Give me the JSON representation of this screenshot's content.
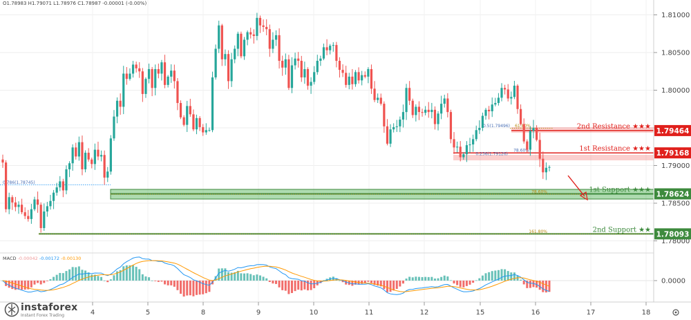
{
  "header": {
    "ohlc": "O1.78983 H1.79071 L1.78976 C1.78987 -0.00001 (-0.00%)"
  },
  "logo": {
    "name": "instaforex",
    "tagline": "Instant Forex Trading",
    "icon": "instaforex-logo-icon"
  },
  "macd": {
    "label": "MACD",
    "v1": "-0.00042",
    "v2": "-0.00172",
    "v3": "-0.00130",
    "zero_label": "0.0000"
  },
  "settings_icon": "gear-icon",
  "colors": {
    "bull": "#26a69a",
    "bear": "#ef5350",
    "resistance": "#e0201c",
    "support": "#3d8a3d",
    "support_zone": "rgba(76,175,80,0.45)",
    "resistance_zone": "rgba(239,83,80,0.28)",
    "macd_line": "#2196f3",
    "signal_line": "#ff9800"
  },
  "chart_data": {
    "type": "candlestick",
    "y_axis": {
      "min": 1.7785,
      "max": 1.8122,
      "ticks": [
        1.78,
        1.785,
        1.79,
        1.795,
        1.8,
        1.805,
        1.81
      ],
      "tick_labels": [
        "1.78000",
        "1.78500",
        "1.79000",
        "1.79500",
        "1.80000",
        "1.80500",
        "1.81000"
      ]
    },
    "x_axis": {
      "ticks": [
        "4",
        "5",
        "8",
        "9",
        "10",
        "11",
        "12",
        "15",
        "16",
        "17",
        "18"
      ]
    },
    "levels": [
      {
        "name": "2nd Resistance",
        "stars": "★★★",
        "price": 1.79464,
        "label": "1.79464",
        "role": "resistance"
      },
      {
        "name": "1st Resistance",
        "stars": "★★★",
        "price": 1.79168,
        "label": "1.79168",
        "role": "resistance"
      },
      {
        "name": "1st Support",
        "stars": "★★★",
        "price": 1.78624,
        "label": "1.78624",
        "role": "support"
      },
      {
        "name": "2nd Support",
        "stars": "★★",
        "price": 1.78093,
        "label": "1.78093",
        "role": "support"
      }
    ],
    "fib_labels": [
      {
        "text": "0.786(1.78745)",
        "price": 1.78745
      },
      {
        "text": "78.60%",
        "price": 1.7862
      },
      {
        "text": "161.80%",
        "price": 1.78093
      },
      {
        "text": "0.5(1.79496)",
        "price": 1.79496
      },
      {
        "text": "61.80%",
        "price": 1.79496
      },
      {
        "text": "0.236(1.79126)",
        "price": 1.79126
      },
      {
        "text": "78.60%",
        "price": 1.79168
      }
    ],
    "candles_close": [
      1.7904,
      1.7842,
      1.7858,
      1.7851,
      1.7845,
      1.7848,
      1.7838,
      1.7833,
      1.7829,
      1.7842,
      1.7855,
      1.7848,
      1.7817,
      1.7839,
      1.7846,
      1.7853,
      1.7864,
      1.7871,
      1.7879,
      1.7867,
      1.7895,
      1.7903,
      1.7924,
      1.7912,
      1.7931,
      1.7895,
      1.7917,
      1.7908,
      1.7902,
      1.7921,
      1.7912,
      1.7914,
      1.7884,
      1.7892,
      1.7936,
      1.7965,
      1.7986,
      1.7978,
      1.8022,
      1.8015,
      1.8022,
      1.8034,
      1.8029,
      1.8025,
      1.7995,
      1.8015,
      1.8028,
      1.8003,
      1.8028,
      1.8022,
      1.8037,
      1.8007,
      1.8018,
      1.8026,
      1.8012,
      1.7983,
      1.7964,
      1.7954,
      1.7979,
      1.7968,
      1.7948,
      1.7963,
      1.7951,
      1.7944,
      1.7947,
      1.7947,
      1.8017,
      1.8055,
      1.8086,
      1.8041,
      1.8048,
      1.8012,
      1.8041,
      1.8055,
      1.8075,
      1.8045,
      1.8067,
      1.8077,
      1.8074,
      1.8072,
      1.8096,
      1.8086,
      1.8084,
      1.8081,
      1.8055,
      1.8067,
      1.8073,
      1.8039,
      1.803,
      1.8041,
      1.8003,
      1.8033,
      1.8042,
      1.8039,
      1.8017,
      1.8028,
      1.8006,
      1.8011,
      1.8024,
      1.8039,
      1.8042,
      1.8057,
      1.8053,
      1.8059,
      1.806,
      1.8039,
      1.8027,
      1.8023,
      1.8007,
      1.8018,
      1.8008,
      1.8024,
      1.8013,
      1.802,
      1.8018,
      1.8028,
      1.8002,
      1.7987,
      1.799,
      1.7982,
      1.7952,
      1.7929,
      1.7948,
      1.7951,
      1.7952,
      1.7961,
      1.7971,
      1.8003,
      1.7986,
      1.7967,
      1.7978,
      1.7971,
      1.797,
      1.7974,
      1.7971,
      1.7974,
      1.7955,
      1.7969,
      1.7982,
      1.7989,
      1.7971,
      1.7935,
      1.7924,
      1.7925,
      1.7911,
      1.7915,
      1.7927,
      1.7928,
      1.7935,
      1.7947,
      1.795,
      1.7966,
      1.7974,
      1.7972,
      1.7981,
      1.7983,
      1.799,
      1.8003,
      1.8001,
      1.7989,
      1.7991,
      1.8006,
      1.7975,
      1.7955,
      1.7932,
      1.7921,
      1.7946,
      1.795,
      1.7934,
      1.7909,
      1.7891,
      1.7897,
      1.7898
    ]
  }
}
